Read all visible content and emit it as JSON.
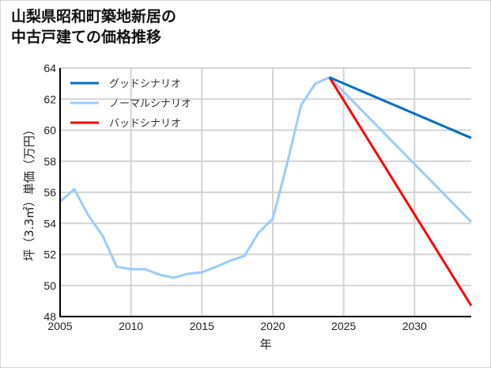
{
  "title_line1": "山梨県昭和町築地新居の",
  "title_line2": "中古戸建ての価格推移",
  "chart_data": {
    "type": "line",
    "title": "山梨県昭和町築地新居の中古戸建ての価格推移",
    "xlabel": "年",
    "ylabel": "坪（3.3㎡）単価（万円）",
    "xlim": [
      2005,
      2034
    ],
    "ylim": [
      48,
      64
    ],
    "xticks": [
      2005,
      2010,
      2015,
      2020,
      2025,
      2030
    ],
    "yticks": [
      48,
      50,
      52,
      54,
      56,
      58,
      60,
      62,
      64
    ],
    "grid": true,
    "legend_position": "upper left",
    "series": [
      {
        "name": "グッドシナリオ",
        "color": "#0070c0",
        "x": [
          2024,
          2034
        ],
        "y": [
          63.4,
          59.5
        ]
      },
      {
        "name": "ノーマルシナリオ",
        "color": "#99ccff",
        "x": [
          2005,
          2006,
          2007,
          2008,
          2009,
          2010,
          2011,
          2012,
          2013,
          2014,
          2015,
          2016,
          2017,
          2018,
          2019,
          2020,
          2021,
          2022,
          2023,
          2024,
          2034
        ],
        "y": [
          55.4,
          56.2,
          54.5,
          53.2,
          51.2,
          51.05,
          51.05,
          50.7,
          50.5,
          50.75,
          50.85,
          51.2,
          51.6,
          51.9,
          53.4,
          54.3,
          57.8,
          61.6,
          63.0,
          63.4,
          54.1
        ]
      },
      {
        "name": "バッドシナリオ",
        "color": "#ff0000",
        "x": [
          2024,
          2034
        ],
        "y": [
          63.4,
          48.7
        ]
      }
    ]
  }
}
